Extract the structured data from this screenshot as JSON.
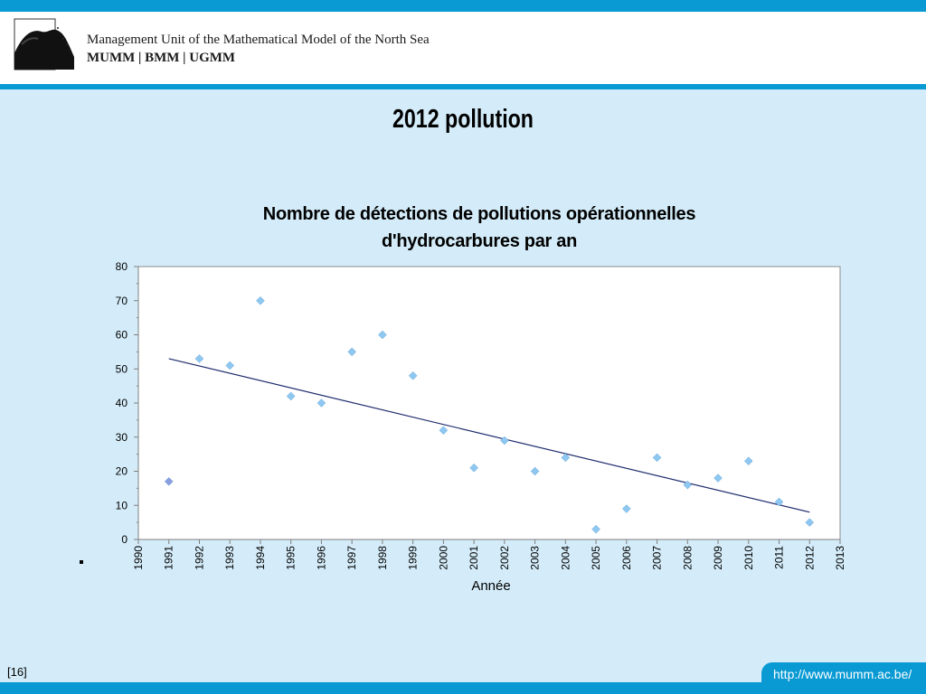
{
  "header": {
    "org_name": "Management Unit of the Mathematical Model of the North Sea",
    "org_short": "MUMM | BMM | UGMM"
  },
  "slide": {
    "title": "2012 pollution",
    "number": "[16]",
    "url": "http://www.mumm.ac.be/",
    "bullet": "."
  },
  "colors": {
    "bar_blue": "#0a9ad3",
    "background": "#d4ecf9",
    "marker": "#8ec8f0",
    "marker_1991": "#8a9de0",
    "trendline": "#1f2d6e"
  },
  "chart_data": {
    "type": "scatter",
    "title_lines": [
      "Nombre de détections de pollutions opérationnelles",
      "d'hydrocarbures par an"
    ],
    "xlabel": "Année",
    "ylabel": "",
    "xlim": [
      1990,
      2013
    ],
    "ylim": [
      0,
      80
    ],
    "x_ticks": [
      1990,
      1991,
      1992,
      1993,
      1994,
      1995,
      1996,
      1997,
      1998,
      1999,
      2000,
      2001,
      2002,
      2003,
      2004,
      2005,
      2006,
      2007,
      2008,
      2009,
      2010,
      2011,
      2012,
      2013
    ],
    "y_ticks": [
      0,
      10,
      20,
      30,
      40,
      50,
      60,
      70,
      80
    ],
    "grid": false,
    "legend": "none",
    "points": [
      {
        "x": 1991,
        "y": 17
      },
      {
        "x": 1992,
        "y": 53
      },
      {
        "x": 1993,
        "y": 51
      },
      {
        "x": 1994,
        "y": 70
      },
      {
        "x": 1995,
        "y": 42
      },
      {
        "x": 1996,
        "y": 40
      },
      {
        "x": 1997,
        "y": 55
      },
      {
        "x": 1998,
        "y": 60
      },
      {
        "x": 1999,
        "y": 48
      },
      {
        "x": 2000,
        "y": 32
      },
      {
        "x": 2001,
        "y": 21
      },
      {
        "x": 2002,
        "y": 29
      },
      {
        "x": 2003,
        "y": 20
      },
      {
        "x": 2004,
        "y": 24
      },
      {
        "x": 2005,
        "y": 3
      },
      {
        "x": 2006,
        "y": 9
      },
      {
        "x": 2007,
        "y": 24
      },
      {
        "x": 2008,
        "y": 16
      },
      {
        "x": 2009,
        "y": 18
      },
      {
        "x": 2010,
        "y": 23
      },
      {
        "x": 2011,
        "y": 11
      },
      {
        "x": 2012,
        "y": 5
      }
    ],
    "trendline": {
      "type": "linear",
      "from": {
        "x": 1991,
        "y": 53
      },
      "to": {
        "x": 2012,
        "y": 8
      }
    }
  }
}
